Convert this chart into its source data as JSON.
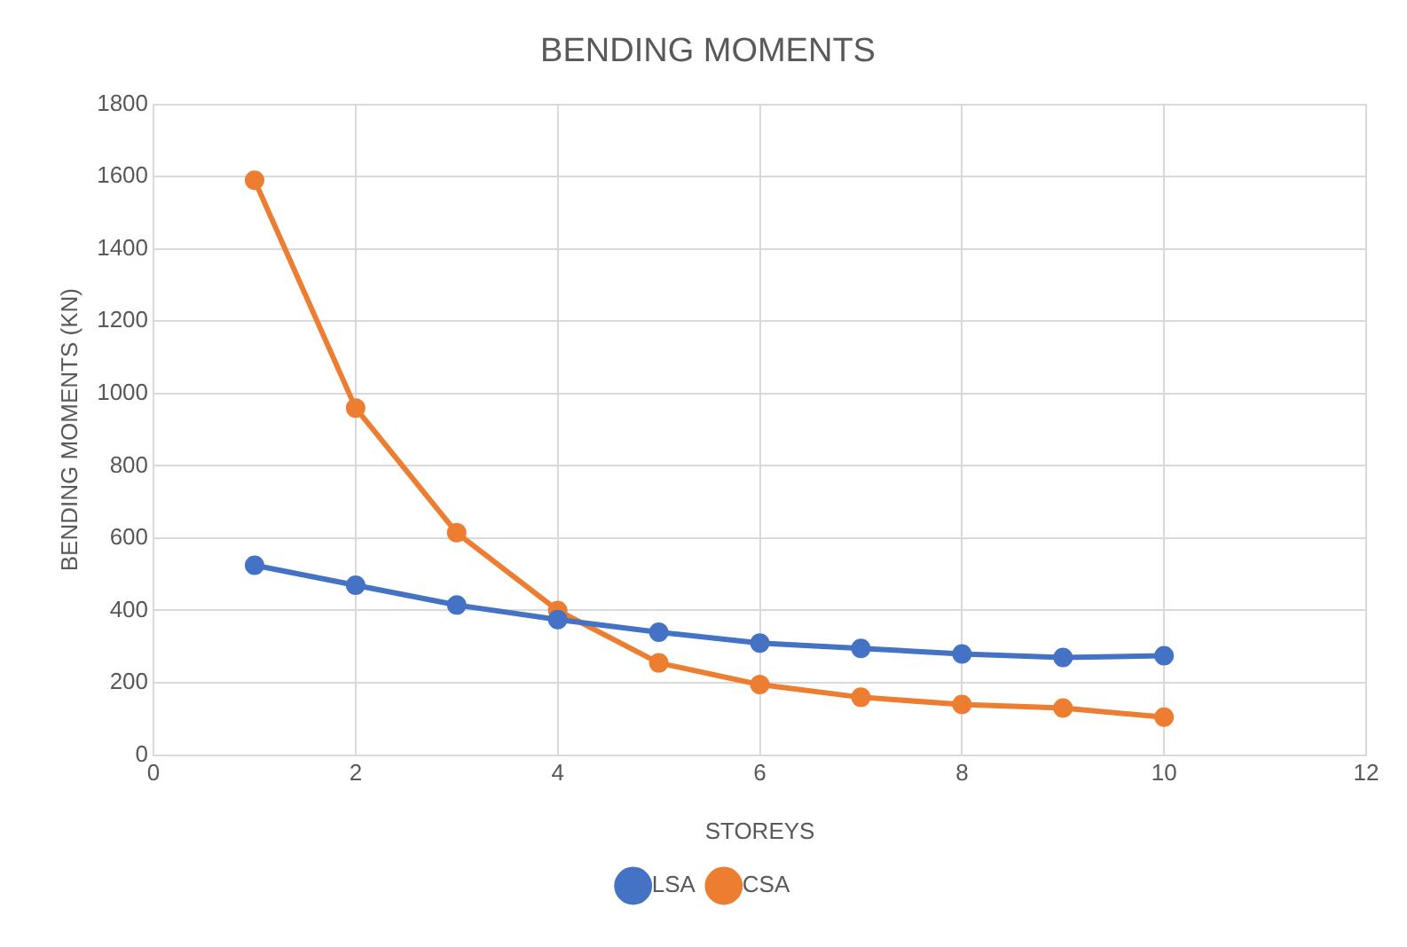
{
  "chart_data": {
    "type": "line",
    "title": "BENDING MOMENTS",
    "xlabel": "STOREYS",
    "ylabel": "BENDING MOMENTS (KN)",
    "x": [
      1,
      2,
      3,
      4,
      5,
      6,
      7,
      8,
      9,
      10
    ],
    "series": [
      {
        "name": "LSA",
        "color": "#4472c4",
        "values": [
          525,
          470,
          415,
          375,
          340,
          310,
          295,
          280,
          270,
          275
        ]
      },
      {
        "name": "CSA",
        "color": "#ed7d31",
        "values": [
          1590,
          960,
          615,
          400,
          255,
          195,
          160,
          140,
          130,
          105
        ]
      }
    ],
    "xlim": [
      0,
      12
    ],
    "xticks": [
      0,
      2,
      4,
      6,
      8,
      10,
      12
    ],
    "ylim": [
      0,
      1800
    ],
    "yticks": [
      0,
      200,
      400,
      600,
      800,
      1000,
      1200,
      1400,
      1600,
      1800
    ],
    "grid": true,
    "legend": "bottom",
    "marker": "circle",
    "line_style": "solid"
  }
}
